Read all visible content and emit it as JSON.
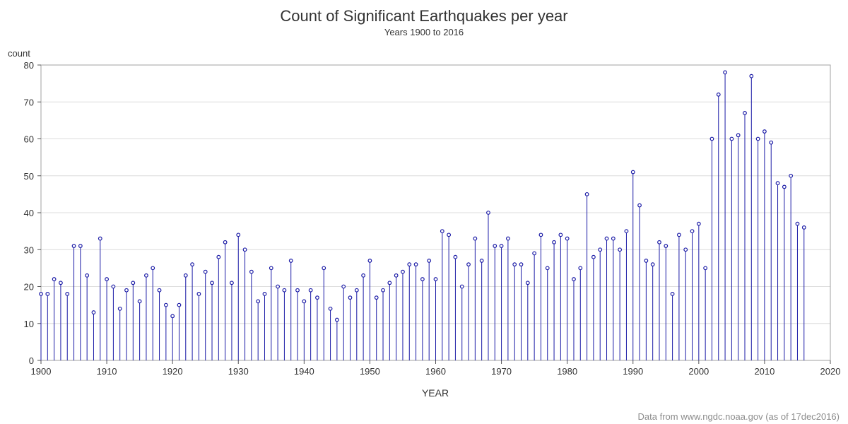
{
  "chart_data": {
    "type": "needle",
    "title": "Count of Significant Earthquakes per year",
    "subtitle": "Years  1900 to 2016",
    "xlabel": "YEAR",
    "ylabel": "count",
    "footnote": "Data from www.ngdc.noaa.gov (as of 17dec2016)",
    "xlim": [
      1900,
      2020
    ],
    "ylim": [
      0,
      80
    ],
    "xticks": [
      1900,
      1910,
      1920,
      1930,
      1940,
      1950,
      1960,
      1970,
      1980,
      1990,
      2000,
      2010,
      2020
    ],
    "yticks": [
      0,
      10,
      20,
      30,
      40,
      50,
      60,
      70,
      80
    ],
    "grid": true,
    "series_color": "#1a1aa6",
    "x": [
      1900,
      1901,
      1902,
      1903,
      1904,
      1905,
      1906,
      1907,
      1908,
      1909,
      1910,
      1911,
      1912,
      1913,
      1914,
      1915,
      1916,
      1917,
      1918,
      1919,
      1920,
      1921,
      1922,
      1923,
      1924,
      1925,
      1926,
      1927,
      1928,
      1929,
      1930,
      1931,
      1932,
      1933,
      1934,
      1935,
      1936,
      1937,
      1938,
      1939,
      1940,
      1941,
      1942,
      1943,
      1944,
      1945,
      1946,
      1947,
      1948,
      1949,
      1950,
      1951,
      1952,
      1953,
      1954,
      1955,
      1956,
      1957,
      1958,
      1959,
      1960,
      1961,
      1962,
      1963,
      1964,
      1965,
      1966,
      1967,
      1968,
      1969,
      1970,
      1971,
      1972,
      1973,
      1974,
      1975,
      1976,
      1977,
      1978,
      1979,
      1980,
      1981,
      1982,
      1983,
      1984,
      1985,
      1986,
      1987,
      1988,
      1989,
      1990,
      1991,
      1992,
      1993,
      1994,
      1995,
      1996,
      1997,
      1998,
      1999,
      2000,
      2001,
      2002,
      2003,
      2004,
      2005,
      2006,
      2007,
      2008,
      2009,
      2010,
      2011,
      2012,
      2013,
      2014,
      2015,
      2016
    ],
    "values": [
      18,
      18,
      22,
      21,
      18,
      31,
      31,
      23,
      13,
      33,
      22,
      20,
      14,
      19,
      21,
      16,
      23,
      25,
      19,
      15,
      12,
      15,
      23,
      26,
      18,
      24,
      21,
      28,
      32,
      21,
      34,
      30,
      24,
      16,
      18,
      25,
      20,
      19,
      27,
      19,
      16,
      19,
      17,
      25,
      14,
      11,
      20,
      17,
      19,
      23,
      27,
      17,
      19,
      21,
      23,
      24,
      26,
      26,
      22,
      27,
      22,
      35,
      34,
      28,
      20,
      26,
      33,
      27,
      40,
      31,
      31,
      33,
      26,
      26,
      21,
      29,
      34,
      25,
      32,
      34,
      33,
      22,
      25,
      45,
      28,
      30,
      33,
      33,
      30,
      35,
      51,
      42,
      27,
      26,
      32,
      31,
      18,
      34,
      30,
      35,
      37,
      25,
      60,
      72,
      78,
      60,
      61,
      67,
      77,
      60,
      62,
      59,
      48,
      47,
      50,
      37,
      36
    ]
  }
}
